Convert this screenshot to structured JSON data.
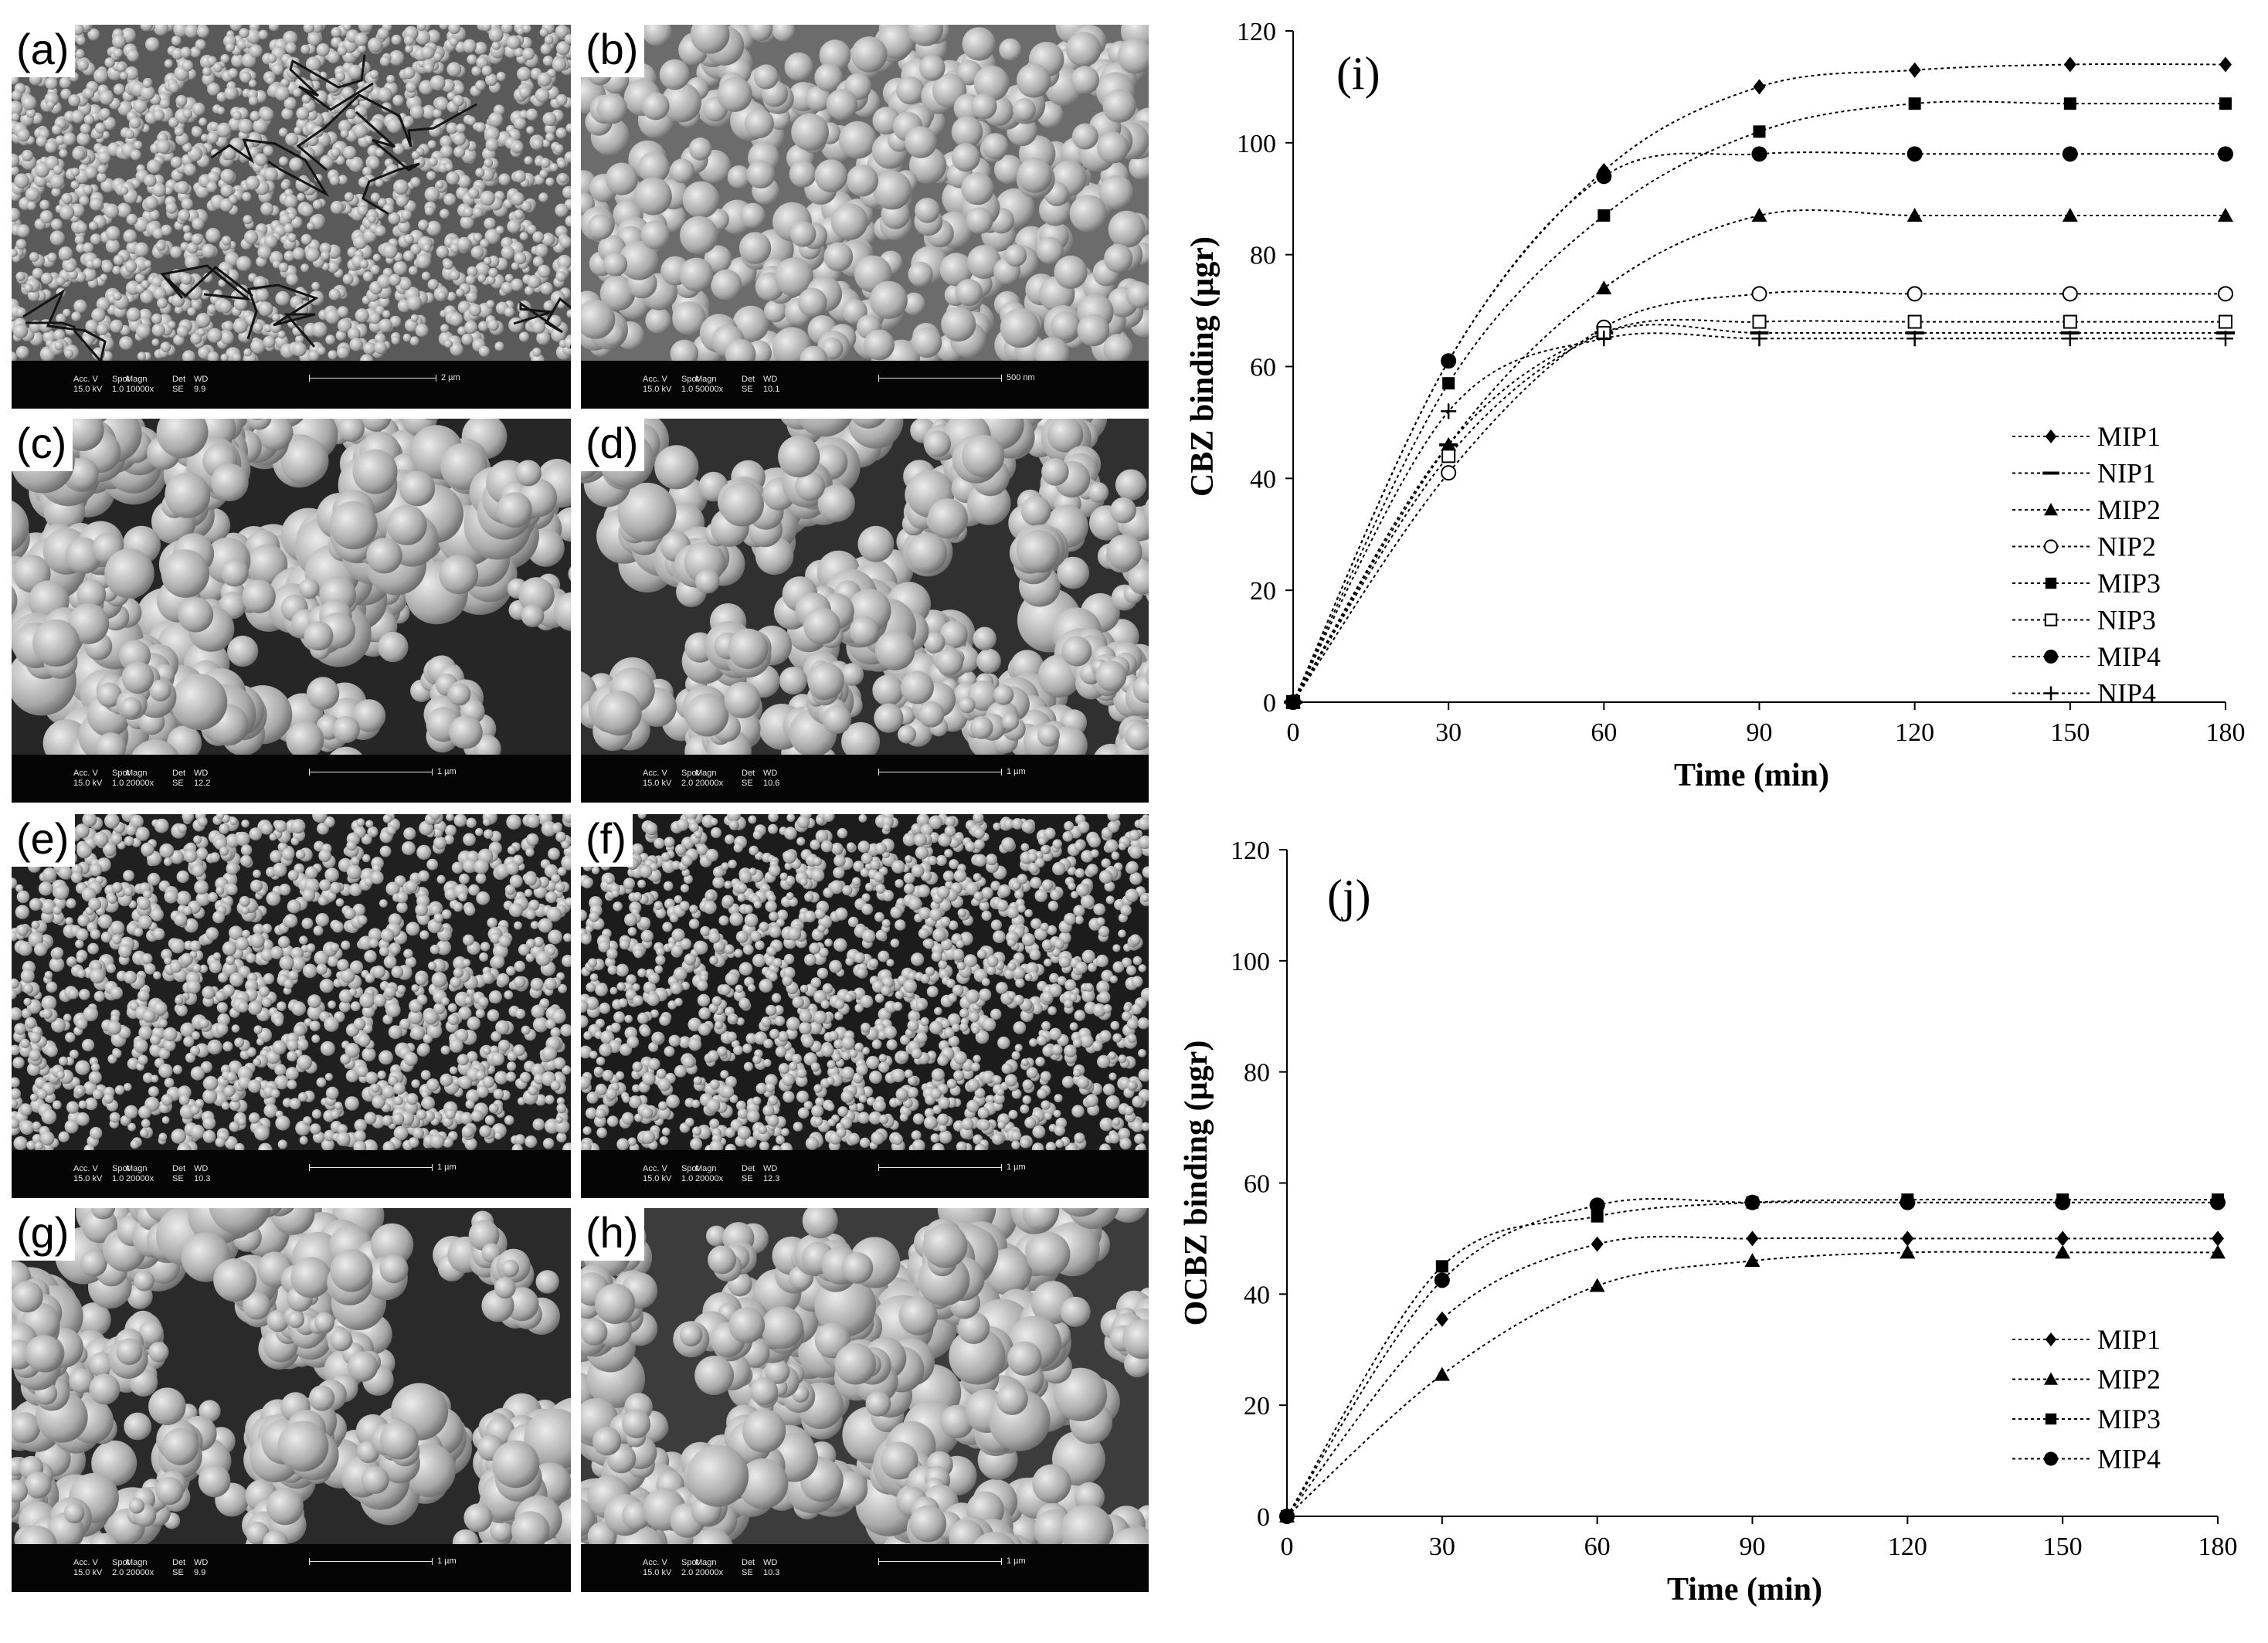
{
  "sem_panels": [
    {
      "id": "a",
      "label": "(a)",
      "acc_v": "15.0 kV",
      "spot": "1.0",
      "magn": "10000x",
      "det": "SE",
      "wd": "9.9",
      "scale": "2 µm"
    },
    {
      "id": "b",
      "label": "(b)",
      "acc_v": "15.0 kV",
      "spot": "1.0",
      "magn": "50000x",
      "det": "SE",
      "wd": "10.1",
      "scale": "500 nm"
    },
    {
      "id": "c",
      "label": "(c)",
      "acc_v": "15.0 kV",
      "spot": "1.0",
      "magn": "20000x",
      "det": "SE",
      "wd": "12.2",
      "scale": "1 µm"
    },
    {
      "id": "d",
      "label": "(d)",
      "acc_v": "15.0 kV",
      "spot": "2.0",
      "magn": "20000x",
      "det": "SE",
      "wd": "10.6",
      "scale": "1 µm"
    },
    {
      "id": "e",
      "label": "(e)",
      "acc_v": "15.0 kV",
      "spot": "1.0",
      "magn": "20000x",
      "det": "SE",
      "wd": "10.3",
      "scale": "1 µm"
    },
    {
      "id": "f",
      "label": "(f)",
      "acc_v": "15.0 kV",
      "spot": "1.0",
      "magn": "20000x",
      "det": "SE",
      "wd": "12.3",
      "scale": "1 µm"
    },
    {
      "id": "g",
      "label": "(g)",
      "acc_v": "15.0 kV",
      "spot": "2.0",
      "magn": "20000x",
      "det": "SE",
      "wd": "9.9",
      "scale": "1 µm"
    },
    {
      "id": "h",
      "label": "(h)",
      "acc_v": "15.0 kV",
      "spot": "2.0",
      "magn": "20000x",
      "det": "SE",
      "wd": "10.3",
      "scale": "1 µm"
    }
  ],
  "sem_header": {
    "acc": "Acc. V",
    "spot": "Spot",
    "magn": "Magn",
    "det": "Det",
    "wd": "WD"
  },
  "colors": {
    "sem_background": "#3a3a3a",
    "sem_particle": "#cfcfcf",
    "sem_bar": "#050505",
    "plot_ink": "#000000"
  },
  "chart_data": [
    {
      "type": "line",
      "panel_label": "(i)",
      "xlabel": "Time (min)",
      "ylabel": "CBZ binding (µgr)",
      "x": [
        0,
        30,
        60,
        90,
        120,
        150,
        180
      ],
      "xlim": [
        0,
        180
      ],
      "ylim": [
        0,
        120
      ],
      "xticks": [
        0,
        30,
        60,
        90,
        120,
        150,
        180
      ],
      "yticks": [
        0,
        20,
        40,
        60,
        80,
        100,
        120
      ],
      "line_style": "dotted",
      "legend_position": "right",
      "series": [
        {
          "name": "MIP1",
          "marker": "diamond",
          "values": [
            0,
            61,
            95,
            110,
            113,
            114,
            114
          ]
        },
        {
          "name": "NIP1",
          "marker": "dash",
          "values": [
            0,
            46,
            66,
            66,
            66,
            66,
            66
          ]
        },
        {
          "name": "MIP2",
          "marker": "triangle",
          "values": [
            0,
            46,
            74,
            87,
            87,
            87,
            87
          ]
        },
        {
          "name": "NIP2",
          "marker": "circle-open",
          "values": [
            0,
            41,
            67,
            73,
            73,
            73,
            73
          ]
        },
        {
          "name": "MIP3",
          "marker": "square",
          "values": [
            0,
            57,
            87,
            102,
            107,
            107,
            107
          ]
        },
        {
          "name": "NIP3",
          "marker": "square-open",
          "values": [
            0,
            44,
            66,
            68,
            68,
            68,
            68
          ]
        },
        {
          "name": "MIP4",
          "marker": "circle",
          "values": [
            0,
            61,
            94,
            98,
            98,
            98,
            98
          ]
        },
        {
          "name": "NIP4",
          "marker": "plus",
          "values": [
            0,
            52,
            65,
            65,
            65,
            65,
            65
          ]
        }
      ]
    },
    {
      "type": "line",
      "panel_label": "(j)",
      "xlabel": "Time (min)",
      "ylabel": "OCBZ binding (µgr)",
      "x": [
        0,
        30,
        60,
        90,
        120,
        150,
        180
      ],
      "xlim": [
        0,
        180
      ],
      "ylim": [
        0,
        120
      ],
      "xticks": [
        0,
        30,
        60,
        90,
        120,
        150,
        180
      ],
      "yticks": [
        0,
        20,
        40,
        60,
        80,
        100,
        120
      ],
      "line_style": "dotted",
      "legend_position": "right",
      "series": [
        {
          "name": "MIP1",
          "marker": "diamond",
          "values": [
            0,
            35.5,
            49,
            50,
            50,
            50,
            50
          ]
        },
        {
          "name": "MIP2",
          "marker": "triangle",
          "values": [
            0,
            25.5,
            41.5,
            46,
            47.5,
            47.5,
            47.5
          ]
        },
        {
          "name": "MIP3",
          "marker": "square",
          "values": [
            0,
            45,
            54,
            56.5,
            57,
            57,
            57
          ]
        },
        {
          "name": "MIP4",
          "marker": "circle",
          "values": [
            0,
            42.5,
            56,
            56.5,
            56.5,
            56.5,
            56.5
          ]
        }
      ]
    }
  ]
}
